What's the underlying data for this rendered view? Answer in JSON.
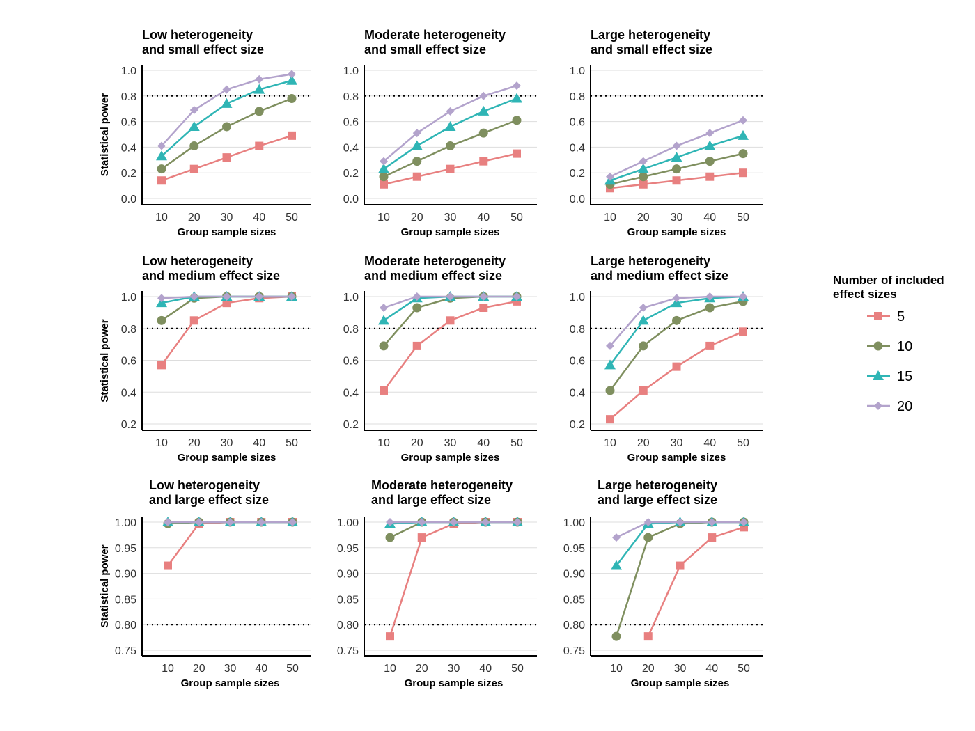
{
  "figure": {
    "legend": {
      "title_lines": [
        "Number of included",
        "effect sizes"
      ],
      "placement": "right"
    },
    "colors": {
      "5": "#e88080",
      "10": "#7f8f5f",
      "15": "#2fb5b5",
      "20": "#b3a3cc"
    },
    "markers": {
      "5": "square",
      "10": "circle",
      "15": "triangle",
      "20": "diamond"
    }
  },
  "chart_data": [
    {
      "type": "line",
      "title_lines": [
        "Low heterogeneity",
        "and small effect size"
      ],
      "xlabel": "Group sample sizes",
      "ylabel": "Statistical power",
      "x": [
        10,
        20,
        30,
        40,
        50
      ],
      "ylim": [
        0,
        1
      ],
      "yticks": [
        "0.0",
        "0.2",
        "0.4",
        "0.6",
        "0.8",
        "1.0"
      ],
      "ytick_values": [
        0,
        0.2,
        0.4,
        0.6,
        0.8,
        1.0
      ],
      "reference_line": 0.8,
      "series": [
        {
          "name": "5",
          "values": [
            0.14,
            0.23,
            0.32,
            0.41,
            0.49
          ]
        },
        {
          "name": "10",
          "values": [
            0.23,
            0.41,
            0.56,
            0.68,
            0.78
          ]
        },
        {
          "name": "15",
          "values": [
            0.33,
            0.56,
            0.74,
            0.85,
            0.92
          ]
        },
        {
          "name": "20",
          "values": [
            0.41,
            0.69,
            0.85,
            0.93,
            0.97
          ]
        }
      ]
    },
    {
      "type": "line",
      "title_lines": [
        "Moderate heterogeneity",
        "and small effect size"
      ],
      "xlabel": "Group sample sizes",
      "ylabel": "",
      "x": [
        10,
        20,
        30,
        40,
        50
      ],
      "ylim": [
        0,
        1
      ],
      "yticks": [
        "0.0",
        "0.2",
        "0.4",
        "0.6",
        "0.8",
        "1.0"
      ],
      "ytick_values": [
        0,
        0.2,
        0.4,
        0.6,
        0.8,
        1.0
      ],
      "reference_line": 0.8,
      "series": [
        {
          "name": "5",
          "values": [
            0.11,
            0.17,
            0.23,
            0.29,
            0.35
          ]
        },
        {
          "name": "10",
          "values": [
            0.17,
            0.29,
            0.41,
            0.51,
            0.61
          ]
        },
        {
          "name": "15",
          "values": [
            0.23,
            0.41,
            0.56,
            0.68,
            0.78
          ]
        },
        {
          "name": "20",
          "values": [
            0.29,
            0.51,
            0.68,
            0.8,
            0.88
          ]
        }
      ]
    },
    {
      "type": "line",
      "title_lines": [
        "Large heterogeneity",
        "and small effect size"
      ],
      "xlabel": "Group sample sizes",
      "ylabel": "",
      "x": [
        10,
        20,
        30,
        40,
        50
      ],
      "ylim": [
        0,
        1
      ],
      "yticks": [
        "0.0",
        "0.2",
        "0.4",
        "0.6",
        "0.8",
        "1.0"
      ],
      "ytick_values": [
        0,
        0.2,
        0.4,
        0.6,
        0.8,
        1.0
      ],
      "reference_line": 0.8,
      "series": [
        {
          "name": "5",
          "values": [
            0.08,
            0.11,
            0.14,
            0.17,
            0.2
          ]
        },
        {
          "name": "10",
          "values": [
            0.11,
            0.17,
            0.23,
            0.29,
            0.35
          ]
        },
        {
          "name": "15",
          "values": [
            0.14,
            0.23,
            0.32,
            0.41,
            0.49
          ]
        },
        {
          "name": "20",
          "values": [
            0.17,
            0.29,
            0.41,
            0.51,
            0.61
          ]
        }
      ]
    },
    {
      "type": "line",
      "title_lines": [
        "Low heterogeneity",
        "and medium effect size"
      ],
      "xlabel": "Group sample sizes",
      "ylabel": "Statistical power",
      "x": [
        10,
        20,
        30,
        40,
        50
      ],
      "ylim": [
        0.2,
        1
      ],
      "yticks": [
        "0.2",
        "0.4",
        "0.6",
        "0.8",
        "1.0"
      ],
      "ytick_values": [
        0.2,
        0.4,
        0.6,
        0.8,
        1.0
      ],
      "reference_line": 0.8,
      "series": [
        {
          "name": "5",
          "values": [
            0.57,
            0.85,
            0.96,
            0.99,
            1.0
          ]
        },
        {
          "name": "10",
          "values": [
            0.85,
            0.99,
            1.0,
            1.0,
            1.0
          ]
        },
        {
          "name": "15",
          "values": [
            0.96,
            1.0,
            1.0,
            1.0,
            1.0
          ]
        },
        {
          "name": "20",
          "values": [
            0.99,
            1.0,
            1.0,
            1.0,
            1.0
          ]
        }
      ]
    },
    {
      "type": "line",
      "title_lines": [
        "Moderate heterogeneity",
        "and medium effect size"
      ],
      "xlabel": "Group sample sizes",
      "ylabel": "",
      "x": [
        10,
        20,
        30,
        40,
        50
      ],
      "ylim": [
        0.2,
        1
      ],
      "yticks": [
        "0.2",
        "0.4",
        "0.6",
        "0.8",
        "1.0"
      ],
      "ytick_values": [
        0.2,
        0.4,
        0.6,
        0.8,
        1.0
      ],
      "reference_line": 0.8,
      "series": [
        {
          "name": "5",
          "values": [
            0.41,
            0.69,
            0.85,
            0.93,
            0.97
          ]
        },
        {
          "name": "10",
          "values": [
            0.69,
            0.93,
            0.99,
            1.0,
            1.0
          ]
        },
        {
          "name": "15",
          "values": [
            0.85,
            0.99,
            1.0,
            1.0,
            1.0
          ]
        },
        {
          "name": "20",
          "values": [
            0.93,
            1.0,
            1.0,
            1.0,
            1.0
          ]
        }
      ]
    },
    {
      "type": "line",
      "title_lines": [
        "Large heterogeneity",
        "and medium effect size"
      ],
      "xlabel": "Group sample sizes",
      "ylabel": "",
      "x": [
        10,
        20,
        30,
        40,
        50
      ],
      "ylim": [
        0.2,
        1
      ],
      "yticks": [
        "0.2",
        "0.4",
        "0.6",
        "0.8",
        "1.0"
      ],
      "ytick_values": [
        0.2,
        0.4,
        0.6,
        0.8,
        1.0
      ],
      "reference_line": 0.8,
      "series": [
        {
          "name": "5",
          "values": [
            0.23,
            0.41,
            0.56,
            0.69,
            0.78
          ]
        },
        {
          "name": "10",
          "values": [
            0.41,
            0.69,
            0.85,
            0.93,
            0.97
          ]
        },
        {
          "name": "15",
          "values": [
            0.57,
            0.85,
            0.96,
            0.99,
            1.0
          ]
        },
        {
          "name": "20",
          "values": [
            0.69,
            0.93,
            0.99,
            1.0,
            1.0
          ]
        }
      ]
    },
    {
      "type": "line",
      "title_lines": [
        "Low heterogeneity",
        "and large effect size"
      ],
      "xlabel": "Group sample sizes",
      "ylabel": "Statistical power",
      "x": [
        10,
        20,
        30,
        40,
        50
      ],
      "ylim": [
        0.75,
        1
      ],
      "yticks": [
        "0.75",
        "0.80",
        "0.85",
        "0.90",
        "0.95",
        "1.00"
      ],
      "ytick_values": [
        0.75,
        0.8,
        0.85,
        0.9,
        0.95,
        1.0
      ],
      "reference_line": 0.8,
      "series": [
        {
          "name": "5",
          "values": [
            0.915,
            0.997,
            1.0,
            1.0,
            1.0
          ]
        },
        {
          "name": "10",
          "values": [
            0.997,
            1.0,
            1.0,
            1.0,
            1.0
          ]
        },
        {
          "name": "15",
          "values": [
            1.0,
            1.0,
            1.0,
            1.0,
            1.0
          ]
        },
        {
          "name": "20",
          "values": [
            1.0,
            1.0,
            1.0,
            1.0,
            1.0
          ]
        }
      ]
    },
    {
      "type": "line",
      "title_lines": [
        "Moderate heterogeneity",
        "and large effect size"
      ],
      "xlabel": "Group sample sizes",
      "ylabel": "",
      "x": [
        10,
        20,
        30,
        40,
        50
      ],
      "ylim": [
        0.75,
        1
      ],
      "yticks": [
        "0.75",
        "0.80",
        "0.85",
        "0.90",
        "0.95",
        "1.00"
      ],
      "ytick_values": [
        0.75,
        0.8,
        0.85,
        0.9,
        0.95,
        1.0
      ],
      "reference_line": 0.8,
      "series": [
        {
          "name": "5",
          "values": [
            0.777,
            0.97,
            0.997,
            1.0,
            1.0
          ]
        },
        {
          "name": "10",
          "values": [
            0.97,
            1.0,
            1.0,
            1.0,
            1.0
          ]
        },
        {
          "name": "15",
          "values": [
            0.997,
            1.0,
            1.0,
            1.0,
            1.0
          ]
        },
        {
          "name": "20",
          "values": [
            1.0,
            1.0,
            1.0,
            1.0,
            1.0
          ]
        }
      ]
    },
    {
      "type": "line",
      "title_lines": [
        "Large heterogeneity",
        "and large effect size"
      ],
      "xlabel": "Group sample sizes",
      "ylabel": "",
      "x": [
        10,
        20,
        30,
        40,
        50
      ],
      "ylim": [
        0.75,
        1
      ],
      "yticks": [
        "0.75",
        "0.80",
        "0.85",
        "0.90",
        "0.95",
        "1.00"
      ],
      "ytick_values": [
        0.75,
        0.8,
        0.85,
        0.9,
        0.95,
        1.0
      ],
      "reference_line": 0.8,
      "series": [
        {
          "name": "5",
          "values": [
            null,
            0.777,
            0.915,
            0.97,
            0.99
          ]
        },
        {
          "name": "10",
          "values": [
            0.777,
            0.97,
            0.997,
            1.0,
            1.0
          ]
        },
        {
          "name": "15",
          "values": [
            0.915,
            0.997,
            1.0,
            1.0,
            1.0
          ]
        },
        {
          "name": "20",
          "values": [
            0.97,
            1.0,
            1.0,
            1.0,
            1.0
          ]
        }
      ]
    }
  ]
}
